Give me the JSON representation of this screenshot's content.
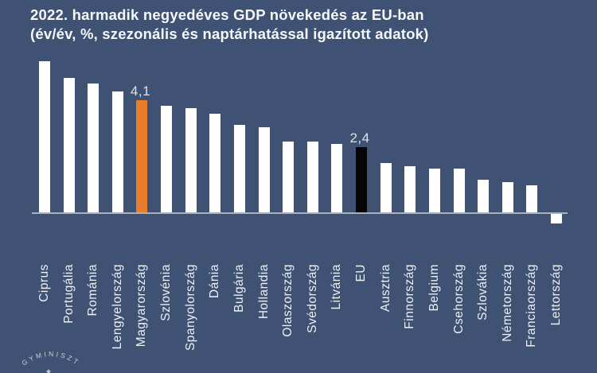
{
  "title": {
    "line1": "2022. harmadik negyedéves GDP növekedés az EU-ban",
    "line2": "(év/év, %, szezonális és naptárhatással igazított adatok)"
  },
  "chart_data": {
    "type": "bar",
    "title": "2022. harmadik negyedéves GDP növekedés az EU-ban (év/év, %, szezonális és naptárhatással igazított adatok)",
    "categories": [
      "Ciprus",
      "Portugália",
      "Románia",
      "Lengyelország",
      "Magyarország",
      "Szlovénia",
      "Spanyolország",
      "Dánia",
      "Bulgária",
      "Hollandia",
      "Olaszország",
      "Svédország",
      "Litvánia",
      "EU",
      "Ausztria",
      "Finnország",
      "Belgium",
      "Csehország",
      "Szlovákia",
      "Németország",
      "Franciaország",
      "Lettország"
    ],
    "values": [
      5.5,
      4.9,
      4.7,
      4.4,
      4.1,
      3.9,
      3.8,
      3.6,
      3.2,
      3.1,
      2.6,
      2.6,
      2.5,
      2.4,
      1.8,
      1.7,
      1.6,
      1.6,
      1.2,
      1.1,
      1.0,
      -0.4
    ],
    "unit": "%",
    "xlabel": "",
    "ylabel": "",
    "ylim": [
      -1,
      6
    ],
    "grid": false,
    "y_axis_visible": false,
    "legend": "none",
    "data_labels": [
      {
        "category": "Magyarország",
        "text": "4,1"
      },
      {
        "category": "EU",
        "text": "2,4"
      }
    ],
    "bar_colors": {
      "default": "#FFFFFF",
      "Magyarország": "#E87D2B",
      "EU": "#050505"
    }
  },
  "colors": {
    "background": "#3F5273",
    "title_text": "#F5F7FA",
    "axis_line": "#A8B1C2",
    "category_label": "#EDF0F5",
    "value_label": "#DCE1E9",
    "logo_text": "#C8D0DD"
  },
  "logo": {
    "arc_text": "GYMINISZT",
    "star": "★"
  }
}
